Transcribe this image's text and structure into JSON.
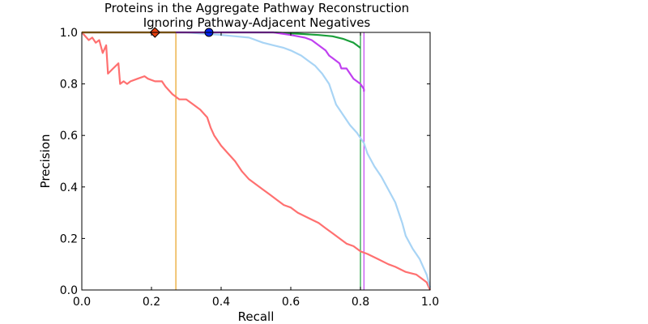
{
  "chart_data": {
    "type": "line",
    "title": [
      "Proteins in the Aggregate Pathway Reconstruction",
      "Ignoring Pathway-Adjacent Negatives"
    ],
    "xlabel": "Recall",
    "ylabel": "Precision",
    "xlim": [
      0.0,
      1.0
    ],
    "ylim": [
      0.0,
      1.0
    ],
    "x_ticks": [
      "0.0",
      "0.2",
      "0.4",
      "0.6",
      "0.8",
      "1.0"
    ],
    "y_ticks": [
      "0.0",
      "0.2",
      "0.4",
      "0.6",
      "0.8",
      "1.0"
    ],
    "grid": false,
    "legend": "none",
    "series": [
      {
        "color": "#ff7070",
        "points": [
          [
            0.0,
            1.0
          ],
          [
            0.02,
            0.97
          ],
          [
            0.03,
            0.98
          ],
          [
            0.04,
            0.96
          ],
          [
            0.05,
            0.97
          ],
          [
            0.06,
            0.92
          ],
          [
            0.07,
            0.95
          ],
          [
            0.075,
            0.84
          ],
          [
            0.09,
            0.86
          ],
          [
            0.105,
            0.88
          ],
          [
            0.11,
            0.8
          ],
          [
            0.12,
            0.81
          ],
          [
            0.13,
            0.8
          ],
          [
            0.14,
            0.81
          ],
          [
            0.16,
            0.82
          ],
          [
            0.18,
            0.83
          ],
          [
            0.19,
            0.82
          ],
          [
            0.21,
            0.81
          ],
          [
            0.23,
            0.81
          ],
          [
            0.24,
            0.79
          ],
          [
            0.26,
            0.76
          ],
          [
            0.27,
            0.75
          ],
          [
            0.28,
            0.74
          ],
          [
            0.3,
            0.74
          ],
          [
            0.32,
            0.72
          ],
          [
            0.34,
            0.7
          ],
          [
            0.36,
            0.67
          ],
          [
            0.37,
            0.63
          ],
          [
            0.38,
            0.6
          ],
          [
            0.4,
            0.56
          ],
          [
            0.42,
            0.53
          ],
          [
            0.44,
            0.5
          ],
          [
            0.46,
            0.46
          ],
          [
            0.48,
            0.43
          ],
          [
            0.5,
            0.41
          ],
          [
            0.52,
            0.39
          ],
          [
            0.54,
            0.37
          ],
          [
            0.56,
            0.35
          ],
          [
            0.58,
            0.33
          ],
          [
            0.6,
            0.32
          ],
          [
            0.62,
            0.3
          ],
          [
            0.65,
            0.28
          ],
          [
            0.68,
            0.26
          ],
          [
            0.7,
            0.24
          ],
          [
            0.72,
            0.22
          ],
          [
            0.74,
            0.2
          ],
          [
            0.76,
            0.18
          ],
          [
            0.78,
            0.17
          ],
          [
            0.8,
            0.15
          ],
          [
            0.82,
            0.14
          ],
          [
            0.85,
            0.12
          ],
          [
            0.88,
            0.1
          ],
          [
            0.9,
            0.09
          ],
          [
            0.93,
            0.07
          ],
          [
            0.96,
            0.06
          ],
          [
            0.98,
            0.04
          ],
          [
            0.99,
            0.03
          ],
          [
            1.0,
            0.0
          ]
        ],
        "lw": 2.2
      },
      {
        "color": "#a8d4f5",
        "points": [
          [
            0.0,
            1.0
          ],
          [
            0.3,
            1.0
          ],
          [
            0.4,
            0.99
          ],
          [
            0.48,
            0.98
          ],
          [
            0.52,
            0.96
          ],
          [
            0.55,
            0.95
          ],
          [
            0.58,
            0.94
          ],
          [
            0.6,
            0.93
          ],
          [
            0.63,
            0.91
          ],
          [
            0.65,
            0.89
          ],
          [
            0.67,
            0.87
          ],
          [
            0.69,
            0.84
          ],
          [
            0.71,
            0.8
          ],
          [
            0.72,
            0.76
          ],
          [
            0.73,
            0.72
          ],
          [
            0.75,
            0.68
          ],
          [
            0.77,
            0.64
          ],
          [
            0.79,
            0.61
          ],
          [
            0.8,
            0.59
          ],
          [
            0.81,
            0.57
          ],
          [
            0.82,
            0.53
          ],
          [
            0.84,
            0.48
          ],
          [
            0.86,
            0.44
          ],
          [
            0.88,
            0.39
          ],
          [
            0.9,
            0.34
          ],
          [
            0.91,
            0.3
          ],
          [
            0.92,
            0.26
          ],
          [
            0.93,
            0.21
          ],
          [
            0.95,
            0.16
          ],
          [
            0.97,
            0.12
          ],
          [
            0.98,
            0.09
          ],
          [
            0.99,
            0.06
          ],
          [
            1.0,
            0.01
          ]
        ],
        "lw": 2.2
      },
      {
        "color": "#1a9f3a",
        "points": [
          [
            0.0,
            1.0
          ],
          [
            0.55,
            1.0
          ],
          [
            0.62,
            0.995
          ],
          [
            0.68,
            0.99
          ],
          [
            0.72,
            0.985
          ],
          [
            0.75,
            0.975
          ],
          [
            0.77,
            0.965
          ],
          [
            0.78,
            0.96
          ],
          [
            0.79,
            0.95
          ],
          [
            0.8,
            0.94
          ]
        ],
        "lw": 2.2
      },
      {
        "color": "#c040f0",
        "points": [
          [
            0.0,
            1.0
          ],
          [
            0.55,
            1.0
          ],
          [
            0.6,
            0.99
          ],
          [
            0.64,
            0.98
          ],
          [
            0.66,
            0.97
          ],
          [
            0.68,
            0.95
          ],
          [
            0.7,
            0.93
          ],
          [
            0.71,
            0.91
          ],
          [
            0.72,
            0.9
          ],
          [
            0.73,
            0.89
          ],
          [
            0.74,
            0.88
          ],
          [
            0.745,
            0.86
          ],
          [
            0.76,
            0.86
          ],
          [
            0.77,
            0.84
          ],
          [
            0.78,
            0.82
          ],
          [
            0.79,
            0.81
          ],
          [
            0.8,
            0.8
          ],
          [
            0.81,
            0.78
          ],
          [
            0.81,
            0.77
          ]
        ],
        "lw": 2.2
      },
      {
        "color": "#e8a020",
        "points": [
          [
            0.0,
            1.0
          ],
          [
            0.27,
            1.0
          ]
        ],
        "lw": 2.2
      }
    ],
    "vertical_lines": [
      {
        "x": 0.27,
        "color": "#e8a020"
      },
      {
        "x": 0.8,
        "color": "#1a9f3a"
      },
      {
        "x": 0.81,
        "color": "#c040f0"
      }
    ],
    "markers": [
      {
        "x": 0.21,
        "y": 1.0,
        "shape": "diamond",
        "fill": "#e84010",
        "stroke": "#000000"
      },
      {
        "x": 0.365,
        "y": 1.0,
        "shape": "circle",
        "fill": "#0022ee",
        "stroke": "#000000"
      }
    ]
  }
}
